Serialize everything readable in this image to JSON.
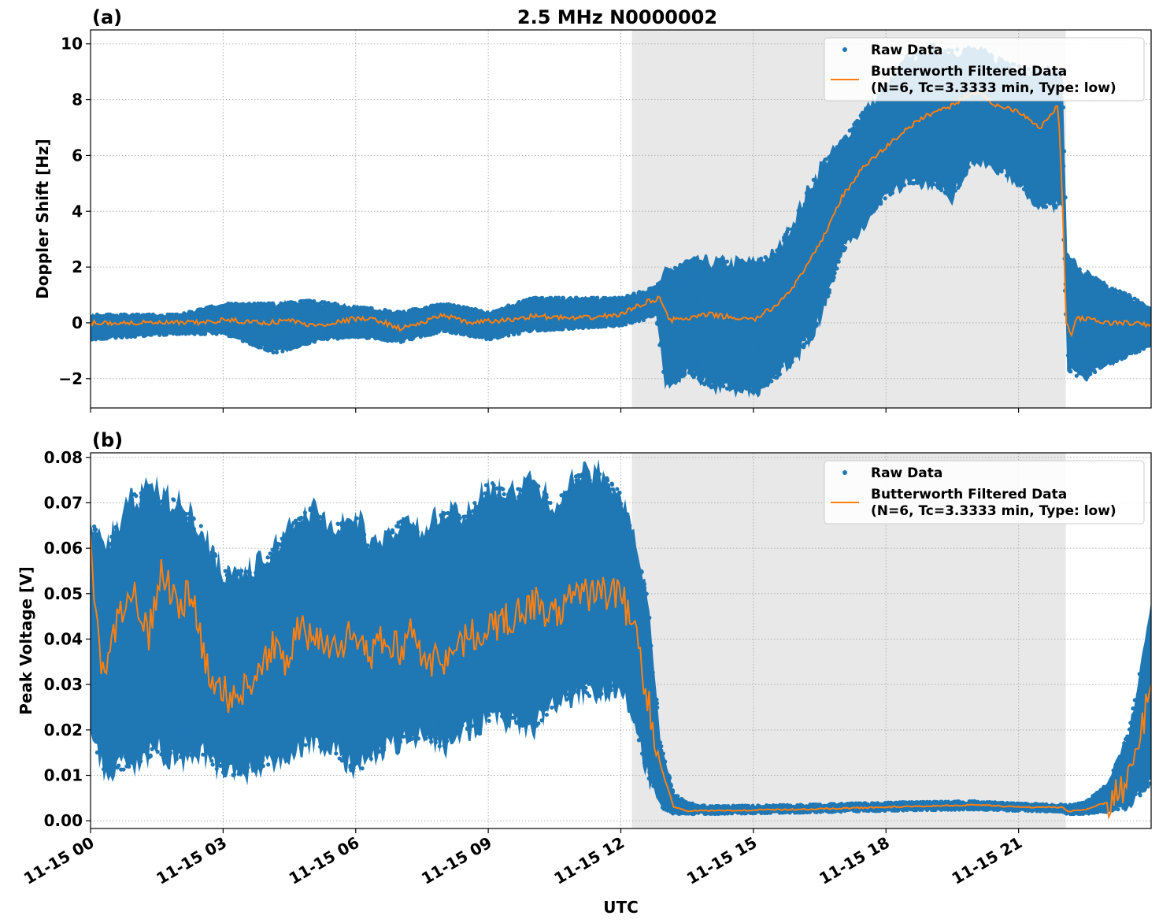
{
  "title": "2.5 MHz N0000002",
  "colors": {
    "raw": "#1f77b4",
    "filtered": "#ff7f0e",
    "shade": "#e8e8e8"
  },
  "chart_data": [
    {
      "type": "scatter",
      "panel_label": "(a)",
      "ylabel": "Doppler Shift [Hz]",
      "xlabel": "",
      "xlim_hours": [
        0,
        24
      ],
      "ylim": [
        -3.05,
        10.5
      ],
      "yticks": [
        -2,
        0,
        2,
        4,
        6,
        8,
        10
      ],
      "ytick_labels": [
        "−2",
        "0",
        "2",
        "4",
        "6",
        "8",
        "10"
      ],
      "shaded_span_hours": [
        12.25,
        22.07
      ],
      "grid": true,
      "legend": {
        "placement": "top-right",
        "entries": [
          "Raw Data",
          "Butterworth Filtered Data",
          "(N=6, Tc=3.3333 min, Type: low)"
        ]
      },
      "filtered": {
        "x": [
          0,
          1,
          2,
          2.5,
          3,
          3.5,
          4,
          4.5,
          5,
          5.5,
          6,
          6.5,
          7,
          7.5,
          8,
          8.5,
          9,
          9.5,
          10,
          11,
          12,
          12.5,
          12.9,
          13.1,
          13.5,
          14,
          14.5,
          15,
          15.5,
          16,
          16.5,
          17,
          17.5,
          18,
          18.5,
          19,
          19.5,
          20,
          20.5,
          21,
          21.5,
          21.9,
          22,
          22.08,
          22.2,
          22.3,
          23,
          23.5,
          24
        ],
        "y": [
          0,
          0,
          0,
          0,
          0.1,
          0.05,
          0,
          0.1,
          -0.1,
          0,
          0.15,
          0.1,
          -0.2,
          0,
          0.3,
          0,
          0.05,
          0.1,
          0.25,
          0.15,
          0.3,
          0.7,
          0.9,
          0.1,
          0.15,
          0.3,
          0.2,
          0.1,
          0.6,
          1.5,
          2.8,
          4.5,
          5.6,
          6.3,
          7.0,
          7.5,
          7.8,
          8.3,
          7.8,
          7.6,
          7.0,
          7.8,
          4.0,
          0.0,
          -0.5,
          0.2,
          0.0,
          0.0,
          -0.1
        ]
      },
      "raw_envelope": {
        "x": [
          0,
          2,
          3,
          4.2,
          5,
          6,
          7,
          8,
          9,
          10,
          11,
          12,
          12.8,
          13,
          13.5,
          14,
          15,
          15.5,
          16,
          16.5,
          17,
          17.5,
          18,
          18.5,
          19,
          19.5,
          20,
          20.5,
          21,
          21.5,
          22,
          22.1,
          22.5,
          23,
          23.5,
          24
        ],
        "low": [
          -0.6,
          -0.4,
          -0.4,
          -1.1,
          -0.7,
          -0.5,
          -0.7,
          -0.3,
          -0.6,
          -0.3,
          -0.2,
          -0.1,
          0.2,
          -2.3,
          -1.8,
          -2.3,
          -2.5,
          -2.0,
          -1.2,
          0.0,
          2.5,
          3.5,
          4.5,
          5.0,
          5.0,
          4.5,
          5.8,
          5.5,
          5.0,
          4.0,
          4.2,
          -1.8,
          -2.0,
          -1.5,
          -1.2,
          -0.8
        ],
        "high": [
          0.3,
          0.3,
          0.7,
          0.7,
          0.8,
          0.6,
          0.4,
          0.7,
          0.4,
          0.9,
          0.9,
          0.9,
          1.3,
          1.8,
          2.2,
          2.2,
          2.2,
          2.5,
          4.0,
          5.6,
          6.5,
          7.6,
          8.5,
          9.5,
          9.8,
          9.8,
          9.8,
          9.5,
          9.2,
          9.0,
          9.0,
          2.4,
          1.8,
          1.3,
          1.0,
          0.5
        ]
      }
    },
    {
      "type": "scatter",
      "panel_label": "(b)",
      "ylabel": "Peak Voltage [V]",
      "xlabel": "UTC",
      "xlim_hours": [
        0,
        24
      ],
      "ylim": [
        -0.0017,
        0.081
      ],
      "yticks": [
        0,
        0.01,
        0.02,
        0.03,
        0.04,
        0.05,
        0.06,
        0.07,
        0.08
      ],
      "ytick_labels": [
        "0.00",
        "0.01",
        "0.02",
        "0.03",
        "0.04",
        "0.05",
        "0.06",
        "0.07",
        "0.08"
      ],
      "xtick_hours": [
        0,
        3,
        6,
        9,
        12,
        15,
        18,
        21
      ],
      "xtick_labels": [
        "11-15 00",
        "11-15 03",
        "11-15 06",
        "11-15 09",
        "11-15 12",
        "11-15 15",
        "11-15 18",
        "11-15 21"
      ],
      "shaded_span_hours": [
        12.25,
        22.07
      ],
      "grid": true,
      "legend": {
        "placement": "top-right",
        "entries": [
          "Raw Data",
          "Butterworth Filtered Data",
          "(N=6, Tc=3.3333 min, Type: low)"
        ]
      },
      "filtered": {
        "x": [
          0,
          0.1,
          0.3,
          0.6,
          1,
          1.3,
          1.6,
          2,
          2.3,
          2.6,
          2.9,
          3.2,
          3.5,
          3.8,
          4.1,
          4.4,
          4.7,
          5,
          5.3,
          5.6,
          6,
          6.3,
          6.6,
          7,
          7.3,
          7.6,
          8,
          8.5,
          9,
          9.5,
          10,
          10.5,
          11,
          11.5,
          12,
          12.3,
          12.6,
          12.9,
          13.2,
          13.5,
          14,
          16,
          18,
          20,
          21,
          22,
          22.1,
          22.5,
          23,
          23.4,
          23.7,
          24
        ],
        "y": [
          0.065,
          0.045,
          0.03,
          0.045,
          0.05,
          0.04,
          0.055,
          0.048,
          0.05,
          0.035,
          0.03,
          0.026,
          0.03,
          0.033,
          0.038,
          0.035,
          0.042,
          0.04,
          0.04,
          0.038,
          0.042,
          0.035,
          0.04,
          0.038,
          0.042,
          0.035,
          0.036,
          0.04,
          0.042,
          0.045,
          0.048,
          0.045,
          0.05,
          0.05,
          0.05,
          0.042,
          0.028,
          0.012,
          0.003,
          0.0022,
          0.0022,
          0.0025,
          0.003,
          0.0035,
          0.003,
          0.003,
          0.002,
          0.0025,
          0.004,
          0.008,
          0.015,
          0.03
        ]
      },
      "raw_envelope": {
        "x": [
          0,
          0.3,
          1,
          1.5,
          2,
          2.5,
          3,
          3.5,
          4,
          4.5,
          5,
          5.5,
          6,
          6.5,
          7,
          7.5,
          8,
          8.5,
          9,
          9.5,
          10,
          10.5,
          11,
          11.5,
          12,
          12.3,
          12.6,
          12.9,
          13.2,
          13.5,
          14,
          16,
          18,
          20,
          21,
          22,
          22.1,
          22.5,
          23,
          23.5,
          24
        ],
        "low": [
          0.02,
          0.01,
          0.012,
          0.015,
          0.013,
          0.015,
          0.01,
          0.01,
          0.012,
          0.015,
          0.017,
          0.015,
          0.01,
          0.015,
          0.017,
          0.018,
          0.016,
          0.02,
          0.022,
          0.022,
          0.02,
          0.025,
          0.028,
          0.027,
          0.03,
          0.022,
          0.01,
          0.003,
          0.0015,
          0.0015,
          0.0015,
          0.0018,
          0.0022,
          0.0025,
          0.0022,
          0.002,
          0.0015,
          0.0015,
          0.002,
          0.003,
          0.008
        ],
        "high": [
          0.067,
          0.06,
          0.072,
          0.073,
          0.07,
          0.065,
          0.055,
          0.055,
          0.058,
          0.065,
          0.069,
          0.065,
          0.067,
          0.06,
          0.066,
          0.064,
          0.068,
          0.067,
          0.075,
          0.072,
          0.075,
          0.07,
          0.076,
          0.077,
          0.073,
          0.062,
          0.05,
          0.017,
          0.006,
          0.004,
          0.0032,
          0.0035,
          0.004,
          0.0043,
          0.0038,
          0.0036,
          0.0035,
          0.004,
          0.008,
          0.02,
          0.047
        ]
      }
    }
  ]
}
